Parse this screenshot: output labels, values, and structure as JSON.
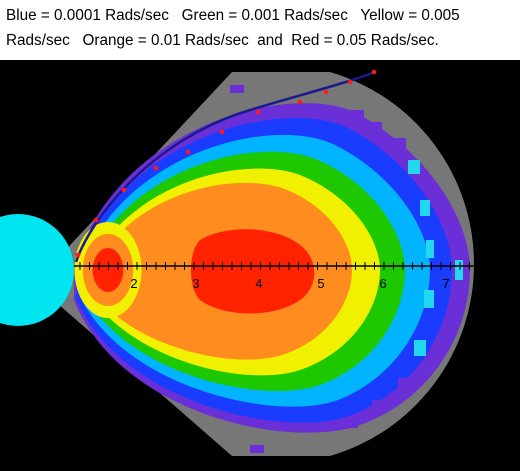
{
  "caption": {
    "line1": "Blue = 0.0001 Rads/sec   Green = 0.001 Rads/sec   Yellow = 0.005",
    "line2": "Rads/sec   Orange = 0.01 Rads/sec  and  Red = 0.05 Rads/sec."
  },
  "contours": [
    {
      "label": "Blue",
      "rate": "0.0001 Rads/sec",
      "color": "#1a3cff"
    },
    {
      "label": "Green",
      "rate": "0.001 Rads/sec",
      "color": "#1ec800"
    },
    {
      "label": "Yellow",
      "rate": "0.005 Rads/sec",
      "color": "#f0f000"
    },
    {
      "label": "Orange",
      "rate": "0.01 Rads/sec",
      "color": "#ff8c1e"
    },
    {
      "label": "Red",
      "rate": "0.05 Rads/sec",
      "color": "#ff2200"
    }
  ],
  "colors": {
    "background": "#000000",
    "cone": "#777777",
    "target": "#00e5f0",
    "curve": "#1a1a8c",
    "marker": "#ff1a1a",
    "cyan_edge": "#22d8ee",
    "purple_edge": "#6a2fd6"
  },
  "axis": {
    "tick_labels": [
      "2",
      "3",
      "4",
      "5",
      "6",
      "7"
    ]
  }
}
